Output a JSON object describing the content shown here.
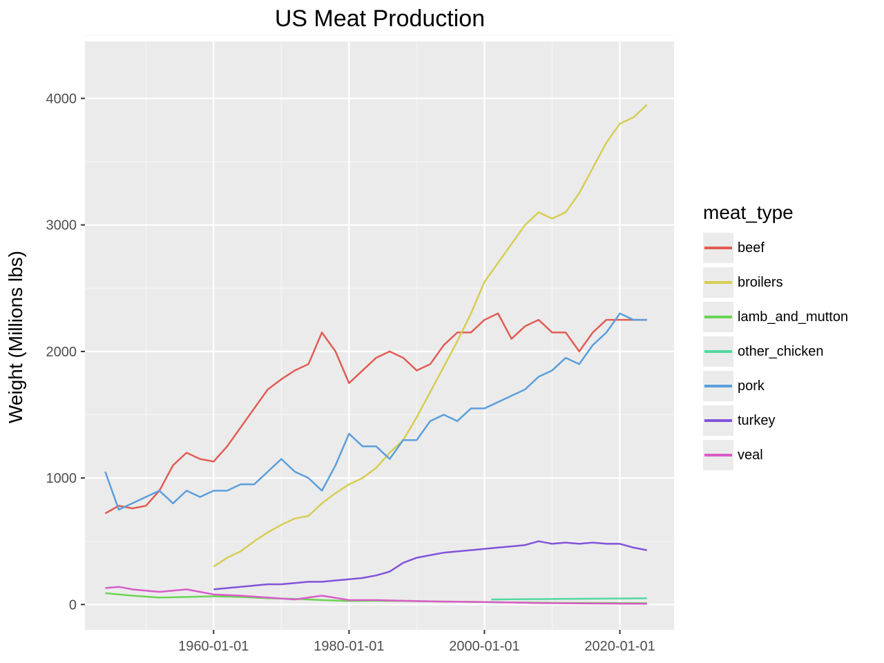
{
  "chart_data": {
    "type": "line",
    "title": "US Meat Production",
    "xlabel": "",
    "ylabel": "Weight (Millions lbs)",
    "x_type": "date",
    "xlim": [
      "1941-01-01",
      "2028-01-01"
    ],
    "ylim": [
      -200,
      4450
    ],
    "x_ticks": [
      "1960-01-01",
      "1980-01-01",
      "2000-01-01",
      "2020-01-01"
    ],
    "y_ticks": [
      0,
      1000,
      2000,
      3000,
      4000
    ],
    "grid": true,
    "legend_title": "meat_type",
    "legend_position": "right",
    "series": [
      {
        "name": "beef",
        "color": "#e15c54",
        "x": [
          "1944-01-01",
          "1946-01-01",
          "1948-01-01",
          "1950-01-01",
          "1952-01-01",
          "1954-01-01",
          "1956-01-01",
          "1958-01-01",
          "1960-01-01",
          "1962-01-01",
          "1964-01-01",
          "1966-01-01",
          "1968-01-01",
          "1970-01-01",
          "1972-01-01",
          "1974-01-01",
          "1976-01-01",
          "1978-01-01",
          "1980-01-01",
          "1982-01-01",
          "1984-01-01",
          "1986-01-01",
          "1988-01-01",
          "1990-01-01",
          "1992-01-01",
          "1994-01-01",
          "1996-01-01",
          "1998-01-01",
          "2000-01-01",
          "2002-01-01",
          "2004-01-01",
          "2006-01-01",
          "2008-01-01",
          "2010-01-01",
          "2012-01-01",
          "2014-01-01",
          "2016-01-01",
          "2018-01-01",
          "2020-01-01",
          "2022-01-01",
          "2024-01-01"
        ],
        "values": [
          720,
          780,
          760,
          780,
          900,
          1100,
          1200,
          1150,
          1130,
          1250,
          1400,
          1550,
          1700,
          1780,
          1850,
          1900,
          2150,
          2000,
          1750,
          1850,
          1950,
          2000,
          1950,
          1850,
          1900,
          2050,
          2150,
          2150,
          2250,
          2300,
          2100,
          2200,
          2250,
          2150,
          2150,
          2000,
          2150,
          2250,
          2250,
          2250,
          2250
        ]
      },
      {
        "name": "broilers",
        "color": "#d6cd53",
        "x": [
          "1960-01-01",
          "1962-01-01",
          "1964-01-01",
          "1966-01-01",
          "1968-01-01",
          "1970-01-01",
          "1972-01-01",
          "1974-01-01",
          "1976-01-01",
          "1978-01-01",
          "1980-01-01",
          "1982-01-01",
          "1984-01-01",
          "1986-01-01",
          "1988-01-01",
          "1990-01-01",
          "1992-01-01",
          "1994-01-01",
          "1996-01-01",
          "1998-01-01",
          "2000-01-01",
          "2002-01-01",
          "2004-01-01",
          "2006-01-01",
          "2008-01-01",
          "2010-01-01",
          "2012-01-01",
          "2014-01-01",
          "2016-01-01",
          "2018-01-01",
          "2020-01-01",
          "2022-01-01",
          "2024-01-01"
        ],
        "values": [
          300,
          370,
          420,
          500,
          570,
          630,
          680,
          700,
          800,
          880,
          950,
          1000,
          1080,
          1200,
          1300,
          1480,
          1680,
          1880,
          2080,
          2300,
          2550,
          2700,
          2850,
          3000,
          3100,
          3050,
          3100,
          3250,
          3450,
          3650,
          3800,
          3850,
          3950
        ]
      },
      {
        "name": "lamb_and_mutton",
        "color": "#6bd454",
        "x": [
          "1944-01-01",
          "1948-01-01",
          "1952-01-01",
          "1956-01-01",
          "1960-01-01",
          "1964-01-01",
          "1968-01-01",
          "1972-01-01",
          "1976-01-01",
          "1980-01-01",
          "1984-01-01",
          "1988-01-01",
          "1992-01-01",
          "1996-01-01",
          "2000-01-01",
          "2004-01-01",
          "2008-01-01",
          "2012-01-01",
          "2016-01-01",
          "2020-01-01",
          "2024-01-01"
        ],
        "values": [
          90,
          70,
          55,
          60,
          65,
          60,
          50,
          45,
          35,
          28,
          30,
          28,
          25,
          22,
          20,
          17,
          15,
          13,
          13,
          12,
          11
        ]
      },
      {
        "name": "other_chicken",
        "color": "#52d89f",
        "x": [
          "2001-01-01",
          "2004-01-01",
          "2008-01-01",
          "2012-01-01",
          "2016-01-01",
          "2020-01-01",
          "2024-01-01"
        ],
        "values": [
          40,
          42,
          43,
          45,
          46,
          48,
          50
        ]
      },
      {
        "name": "pork",
        "color": "#5a9edc",
        "x": [
          "1944-01-01",
          "1946-01-01",
          "1948-01-01",
          "1950-01-01",
          "1952-01-01",
          "1954-01-01",
          "1956-01-01",
          "1958-01-01",
          "1960-01-01",
          "1962-01-01",
          "1964-01-01",
          "1966-01-01",
          "1968-01-01",
          "1970-01-01",
          "1972-01-01",
          "1974-01-01",
          "1976-01-01",
          "1978-01-01",
          "1980-01-01",
          "1982-01-01",
          "1984-01-01",
          "1986-01-01",
          "1988-01-01",
          "1990-01-01",
          "1992-01-01",
          "1994-01-01",
          "1996-01-01",
          "1998-01-01",
          "2000-01-01",
          "2002-01-01",
          "2004-01-01",
          "2006-01-01",
          "2008-01-01",
          "2010-01-01",
          "2012-01-01",
          "2014-01-01",
          "2016-01-01",
          "2018-01-01",
          "2020-01-01",
          "2022-01-01",
          "2024-01-01"
        ],
        "values": [
          1050,
          750,
          800,
          850,
          900,
          800,
          900,
          850,
          900,
          900,
          950,
          950,
          1050,
          1150,
          1050,
          1000,
          900,
          1100,
          1350,
          1250,
          1250,
          1150,
          1300,
          1300,
          1450,
          1500,
          1450,
          1550,
          1550,
          1600,
          1650,
          1700,
          1800,
          1850,
          1950,
          1900,
          2050,
          2150,
          2300,
          2250,
          2250
        ]
      },
      {
        "name": "turkey",
        "color": "#8153d9",
        "x": [
          "1960-01-01",
          "1962-01-01",
          "1964-01-01",
          "1966-01-01",
          "1968-01-01",
          "1970-01-01",
          "1972-01-01",
          "1974-01-01",
          "1976-01-01",
          "1978-01-01",
          "1980-01-01",
          "1982-01-01",
          "1984-01-01",
          "1986-01-01",
          "1988-01-01",
          "1990-01-01",
          "1992-01-01",
          "1994-01-01",
          "1996-01-01",
          "1998-01-01",
          "2000-01-01",
          "2002-01-01",
          "2004-01-01",
          "2006-01-01",
          "2008-01-01",
          "2010-01-01",
          "2012-01-01",
          "2014-01-01",
          "2016-01-01",
          "2018-01-01",
          "2020-01-01",
          "2022-01-01",
          "2024-01-01"
        ],
        "values": [
          120,
          130,
          140,
          150,
          160,
          160,
          170,
          180,
          180,
          190,
          200,
          210,
          230,
          260,
          330,
          370,
          390,
          410,
          420,
          430,
          440,
          450,
          460,
          470,
          500,
          480,
          490,
          480,
          490,
          480,
          480,
          450,
          430
        ]
      },
      {
        "name": "veal",
        "color": "#d95cc8",
        "x": [
          "1944-01-01",
          "1946-01-01",
          "1948-01-01",
          "1950-01-01",
          "1952-01-01",
          "1954-01-01",
          "1956-01-01",
          "1958-01-01",
          "1960-01-01",
          "1964-01-01",
          "1968-01-01",
          "1972-01-01",
          "1976-01-01",
          "1980-01-01",
          "1984-01-01",
          "1988-01-01",
          "1992-01-01",
          "1996-01-01",
          "2000-01-01",
          "2004-01-01",
          "2008-01-01",
          "2012-01-01",
          "2016-01-01",
          "2020-01-01",
          "2024-01-01"
        ],
        "values": [
          130,
          140,
          120,
          110,
          100,
          110,
          120,
          100,
          80,
          70,
          55,
          40,
          70,
          35,
          35,
          30,
          25,
          22,
          20,
          16,
          12,
          10,
          8,
          7,
          6
        ]
      }
    ]
  }
}
